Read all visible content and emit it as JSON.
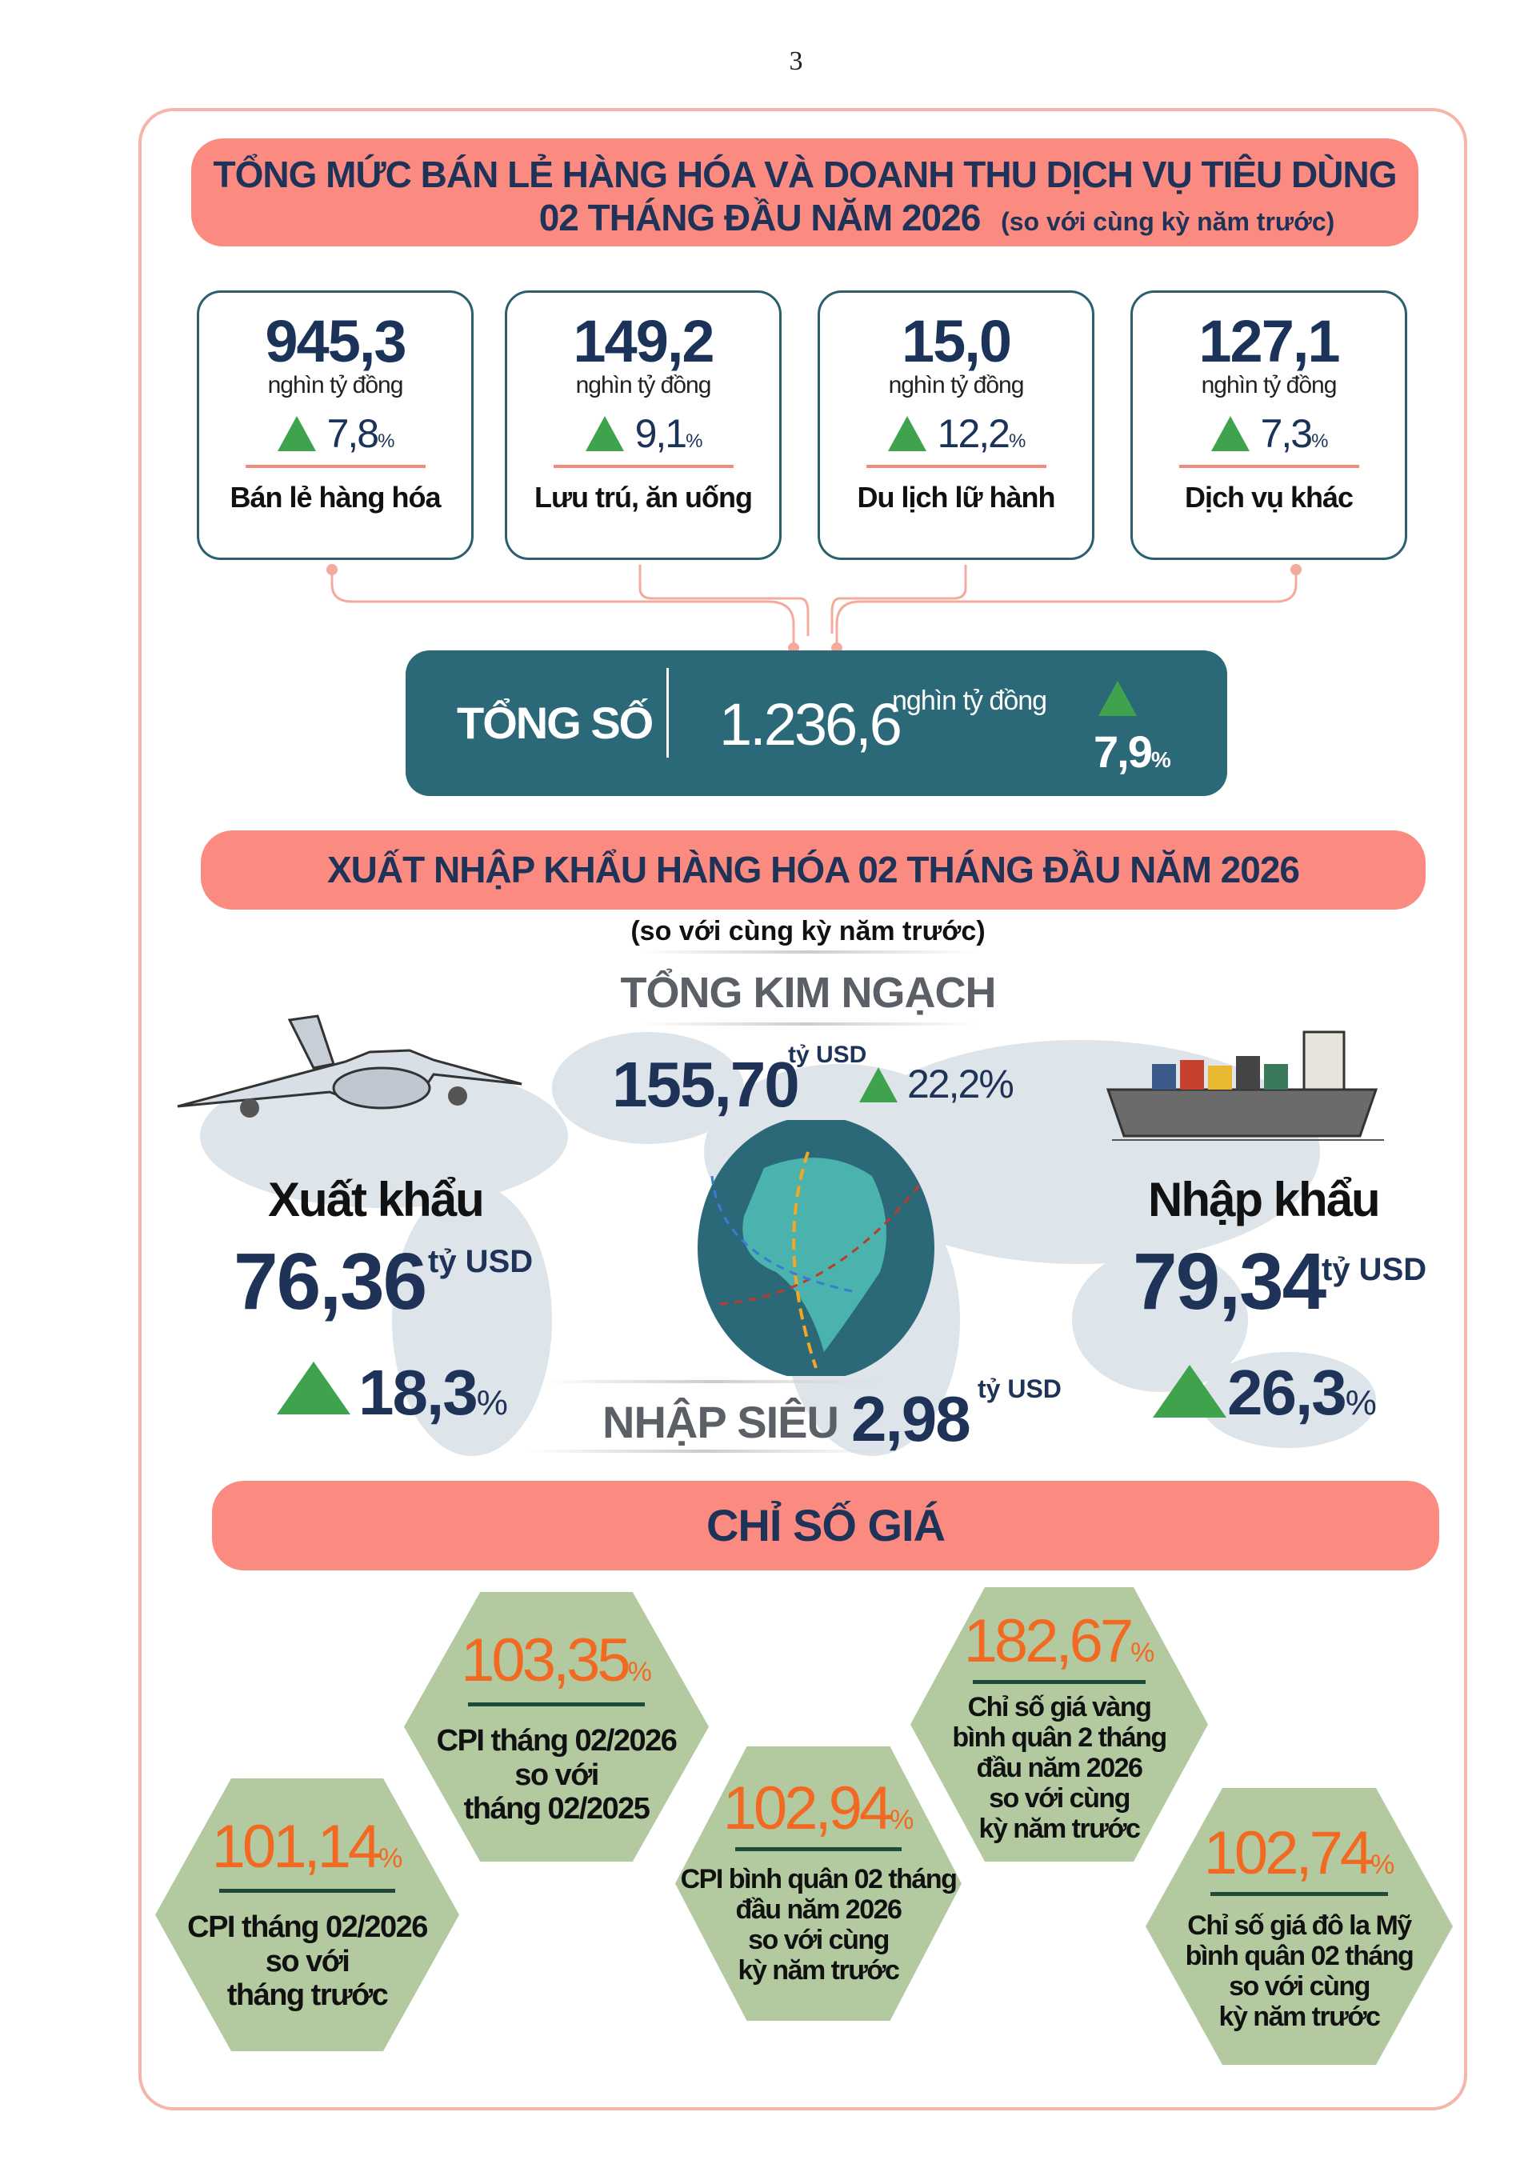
{
  "page_number": "3",
  "retail": {
    "title_line1": "TỔNG MỨC BÁN LẺ HÀNG HÓA VÀ DOANH THU DỊCH VỤ TIÊU DÙNG",
    "title_line2": "02 THÁNG ĐẦU NĂM 2026",
    "title_note": "(so với cùng kỳ năm trước)",
    "cards": [
      {
        "value": "945,3",
        "unit": "nghìn tỷ đồng",
        "growth": "7,8",
        "pct": "%",
        "label": "Bán lẻ hàng hóa"
      },
      {
        "value": "149,2",
        "unit": "nghìn tỷ đồng",
        "growth": "9,1",
        "pct": "%",
        "label": "Lưu trú, ăn uống"
      },
      {
        "value": "15,0",
        "unit": "nghìn tỷ đồng",
        "growth": "12,2",
        "pct": "%",
        "label": "Du lịch lữ hành"
      },
      {
        "value": "127,1",
        "unit": "nghìn tỷ đồng",
        "growth": "7,3",
        "pct": "%",
        "label": "Dịch vụ khác"
      }
    ],
    "total": {
      "label": "TỔNG SỐ",
      "value": "1.236,6",
      "unit": "nghìn tỷ đồng",
      "growth": "7,9",
      "pct": "%"
    }
  },
  "trade": {
    "title": "XUẤT NHẬP KHẨU HÀNG HÓA 02 THÁNG ĐẦU NĂM 2026",
    "note": "(so với cùng kỳ năm trước)",
    "total_label": "TỔNG KIM NGẠCH",
    "total_value": "155,70",
    "total_unit": "tỷ USD",
    "total_growth": "22,2%",
    "export": {
      "label": "Xuất khẩu",
      "value": "76,36",
      "unit": "tỷ USD",
      "growth": "18,3",
      "pct": "%"
    },
    "import": {
      "label": "Nhập khẩu",
      "value": "79,34",
      "unit": "tỷ USD",
      "growth": "26,3",
      "pct": "%"
    },
    "deficit": {
      "label": "NHẬP SIÊU",
      "value": "2,98",
      "unit": "tỷ USD"
    }
  },
  "prices": {
    "title": "CHỈ SỐ GIÁ",
    "items": [
      {
        "value": "103,35",
        "pct": "%",
        "text": "CPI tháng 02/2026\nso với\ntháng 02/2025"
      },
      {
        "value": "182,67",
        "pct": "%",
        "text": "Chỉ số giá vàng\nbình quân 2 tháng\nđầu năm 2026\nso với cùng\nkỳ năm trước"
      },
      {
        "value": "101,14",
        "pct": "%",
        "text": "CPI tháng 02/2026\nso với\ntháng trước"
      },
      {
        "value": "102,94",
        "pct": "%",
        "text": "CPI bình quân 02 tháng\nđầu năm 2026\nso với cùng\nkỳ năm trước"
      },
      {
        "value": "102,74",
        "pct": "%",
        "text": "Chỉ số giá đô la Mỹ\nbình quân 02 tháng\nso với cùng\nkỳ năm trước"
      }
    ]
  },
  "colors": {
    "banner": "#fb8b80",
    "teal": "#2b6878",
    "navy": "#1f3358",
    "up": "#3fa34d",
    "orange": "#f26a21",
    "hex": "#b3c9a0"
  }
}
